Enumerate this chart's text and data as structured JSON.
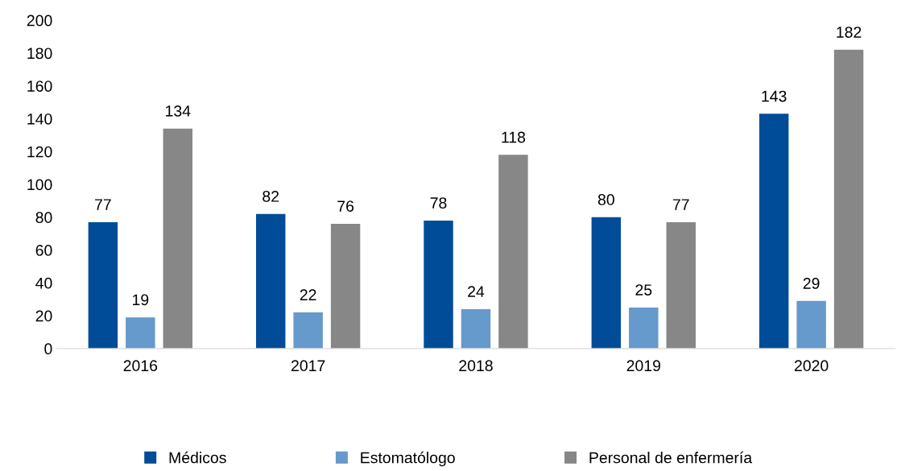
{
  "chart_data": {
    "type": "bar",
    "categories": [
      "2016",
      "2017",
      "2018",
      "2019",
      "2020"
    ],
    "series": [
      {
        "name": "Médicos",
        "color": "#004c99",
        "values": [
          77,
          82,
          78,
          80,
          143
        ]
      },
      {
        "name": "Estomatólogo",
        "color": "#6699cc",
        "values": [
          19,
          22,
          24,
          25,
          29
        ]
      },
      {
        "name": "Personal de enfermería",
        "color": "#878787",
        "values": [
          134,
          76,
          118,
          77,
          182
        ]
      }
    ],
    "ylim": [
      0,
      200
    ],
    "yticks": [
      0,
      20,
      40,
      60,
      80,
      100,
      120,
      140,
      160,
      180,
      200
    ],
    "grid": false,
    "legend": "bottom",
    "data_labels": true
  }
}
